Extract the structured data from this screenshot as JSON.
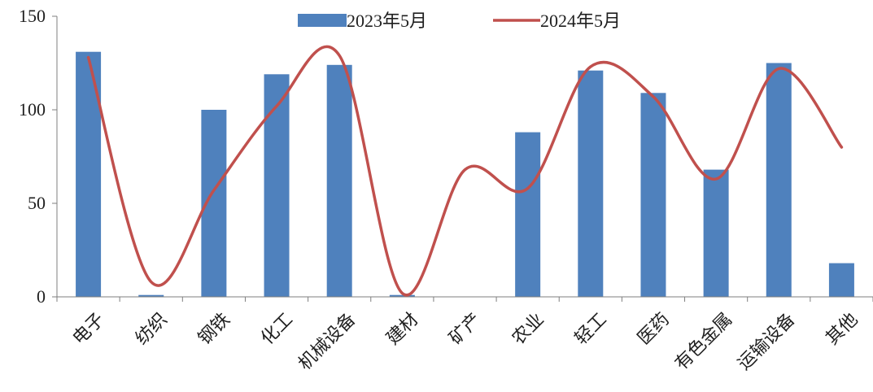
{
  "chart_data": {
    "type": "bar",
    "categories": [
      "电子",
      "纺织",
      "钢铁",
      "化工",
      "机械设备",
      "建材",
      "矿产",
      "农业",
      "轻工",
      "医药",
      "有色金属",
      "运输设备",
      "其他"
    ],
    "series": [
      {
        "name": "2023年5月",
        "type": "bar",
        "color": "#4f81bd",
        "values": [
          131,
          1,
          100,
          119,
          124,
          1,
          0,
          88,
          121,
          109,
          68,
          125,
          18
        ]
      },
      {
        "name": "2024年5月",
        "type": "line",
        "color": "#c0504d",
        "smooth": true,
        "values": [
          128,
          8,
          57,
          102,
          129,
          2,
          68,
          58,
          123,
          107,
          63,
          122,
          80
        ]
      }
    ],
    "ylim": [
      0,
      150
    ],
    "yticks": [
      0,
      50,
      100,
      150
    ],
    "title": "",
    "xlabel": "",
    "ylabel": "",
    "legend": "top-center",
    "grid": false
  }
}
